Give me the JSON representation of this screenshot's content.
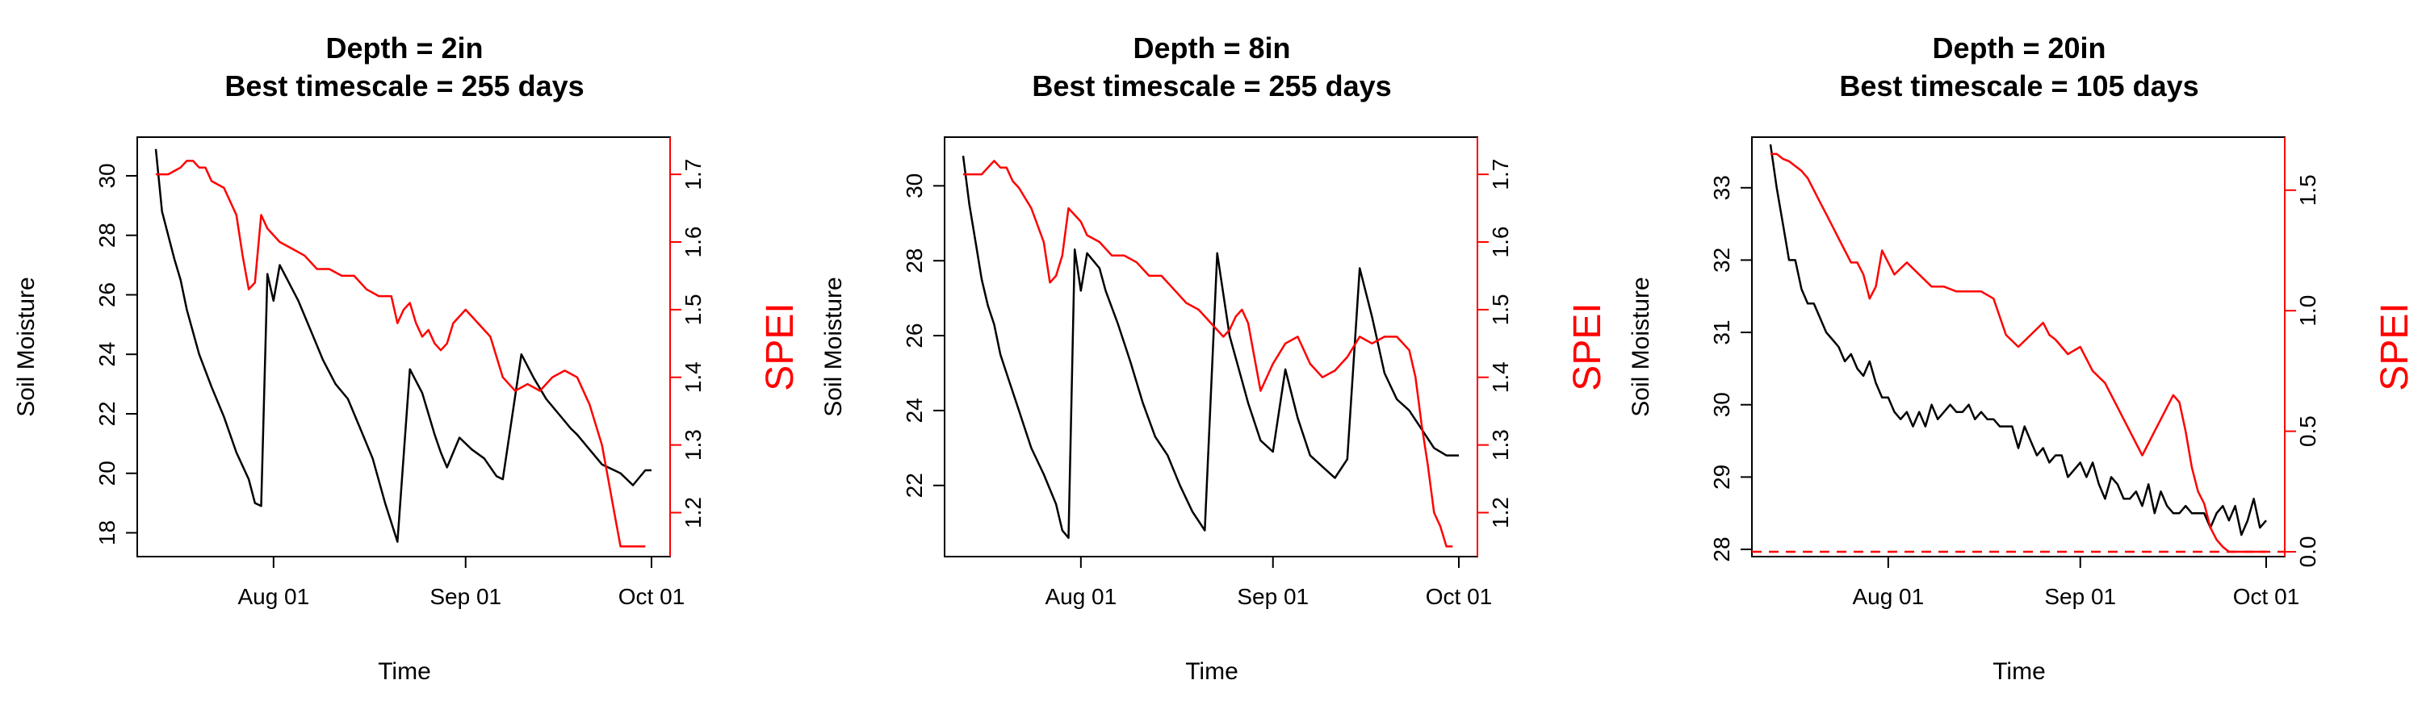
{
  "chart_data": [
    {
      "type": "line",
      "title_line1": "Depth = 2in",
      "title_line2": "Best timescale = 255 days",
      "xlabel": "Time",
      "ylabel": "Soil Moisture",
      "y2label": "SPEI",
      "x_ticks": [
        "Aug 01",
        "Sep 01",
        "Oct 01"
      ],
      "y_ticks": [
        18,
        20,
        22,
        24,
        26,
        28,
        30
      ],
      "y2_ticks": [
        1.2,
        1.3,
        1.4,
        1.5,
        1.6,
        1.7
      ],
      "xlim": [
        "2023-07-10",
        "2023-10-04"
      ],
      "ylim": [
        17.2,
        31.3
      ],
      "y2lim": [
        1.135,
        1.755
      ],
      "secondary_axis_color": "#ff0000",
      "series": [
        {
          "name": "Soil Moisture",
          "axis": "left",
          "color": "#000000",
          "x": [
            "2023-07-13",
            "2023-07-14",
            "2023-07-16",
            "2023-07-17",
            "2023-07-18",
            "2023-07-20",
            "2023-07-22",
            "2023-07-24",
            "2023-07-26",
            "2023-07-28",
            "2023-07-29",
            "2023-07-30",
            "2023-07-31",
            "2023-08-01",
            "2023-08-02",
            "2023-08-03",
            "2023-08-05",
            "2023-08-07",
            "2023-08-09",
            "2023-08-11",
            "2023-08-13",
            "2023-08-15",
            "2023-08-17",
            "2023-08-19",
            "2023-08-21",
            "2023-08-23",
            "2023-08-25",
            "2023-08-26",
            "2023-08-27",
            "2023-08-28",
            "2023-08-29",
            "2023-08-31",
            "2023-09-02",
            "2023-09-04",
            "2023-09-06",
            "2023-09-07",
            "2023-09-10",
            "2023-09-12",
            "2023-09-14",
            "2023-09-16",
            "2023-09-18",
            "2023-09-19",
            "2023-09-21",
            "2023-09-23",
            "2023-09-26",
            "2023-09-28",
            "2023-09-30",
            "2023-10-01"
          ],
          "values": [
            30.9,
            28.8,
            27.2,
            26.5,
            25.5,
            24.0,
            22.9,
            21.9,
            20.7,
            19.8,
            19.0,
            18.9,
            26.7,
            25.8,
            27.0,
            26.6,
            25.8,
            24.8,
            23.8,
            23.0,
            22.5,
            21.5,
            20.5,
            19.0,
            17.7,
            23.5,
            22.7,
            22.0,
            21.3,
            20.7,
            20.2,
            21.2,
            20.8,
            20.5,
            19.9,
            19.8,
            24.0,
            23.2,
            22.5,
            22.0,
            21.5,
            21.3,
            20.8,
            20.3,
            20.0,
            19.6,
            20.1,
            20.1
          ]
        },
        {
          "name": "SPEI",
          "axis": "right",
          "color": "#ff0000",
          "x": [
            "2023-07-13",
            "2023-07-14",
            "2023-07-15",
            "2023-07-16",
            "2023-07-17",
            "2023-07-18",
            "2023-07-19",
            "2023-07-20",
            "2023-07-21",
            "2023-07-22",
            "2023-07-24",
            "2023-07-26",
            "2023-07-27",
            "2023-07-28",
            "2023-07-29",
            "2023-07-30",
            "2023-07-31",
            "2023-08-01",
            "2023-08-02",
            "2023-08-04",
            "2023-08-06",
            "2023-08-08",
            "2023-08-10",
            "2023-08-12",
            "2023-08-14",
            "2023-08-16",
            "2023-08-18",
            "2023-08-20",
            "2023-08-21",
            "2023-08-22",
            "2023-08-23",
            "2023-08-24",
            "2023-08-25",
            "2023-08-26",
            "2023-08-27",
            "2023-08-28",
            "2023-08-29",
            "2023-08-30",
            "2023-09-01",
            "2023-09-03",
            "2023-09-05",
            "2023-09-07",
            "2023-09-09",
            "2023-09-11",
            "2023-09-13",
            "2023-09-15",
            "2023-09-17",
            "2023-09-19",
            "2023-09-21",
            "2023-09-23",
            "2023-09-24",
            "2023-09-25",
            "2023-09-26",
            "2023-09-27",
            "2023-09-28",
            "2023-09-29",
            "2023-09-30"
          ],
          "values": [
            1.7,
            1.7,
            1.7,
            1.705,
            1.71,
            1.72,
            1.72,
            1.71,
            1.71,
            1.69,
            1.68,
            1.64,
            1.58,
            1.53,
            1.54,
            1.64,
            1.62,
            1.61,
            1.6,
            1.59,
            1.58,
            1.56,
            1.56,
            1.55,
            1.55,
            1.53,
            1.52,
            1.52,
            1.48,
            1.5,
            1.51,
            1.48,
            1.46,
            1.47,
            1.45,
            1.44,
            1.45,
            1.48,
            1.5,
            1.48,
            1.46,
            1.4,
            1.38,
            1.39,
            1.38,
            1.4,
            1.41,
            1.4,
            1.36,
            1.3,
            1.25,
            1.2,
            1.15,
            1.15,
            1.15,
            1.15,
            1.15
          ]
        }
      ]
    },
    {
      "type": "line",
      "title_line1": "Depth = 8in",
      "title_line2": "Best timescale = 255 days",
      "xlabel": "Time",
      "ylabel": "Soil Moisture",
      "y2label": "SPEI",
      "x_ticks": [
        "Aug 01",
        "Sep 01",
        "Oct 01"
      ],
      "y_ticks": [
        22,
        24,
        26,
        28,
        30
      ],
      "y2_ticks": [
        1.2,
        1.3,
        1.4,
        1.5,
        1.6,
        1.7
      ],
      "xlim": [
        "2023-07-10",
        "2023-10-04"
      ],
      "ylim": [
        20.1,
        31.3
      ],
      "y2lim": [
        1.135,
        1.755
      ],
      "secondary_axis_color": "#ff0000",
      "series": [
        {
          "name": "Soil Moisture",
          "axis": "left",
          "color": "#000000",
          "x": [
            "2023-07-13",
            "2023-07-14",
            "2023-07-15",
            "2023-07-16",
            "2023-07-17",
            "2023-07-18",
            "2023-07-19",
            "2023-07-20",
            "2023-07-22",
            "2023-07-24",
            "2023-07-26",
            "2023-07-28",
            "2023-07-29",
            "2023-07-30",
            "2023-07-31",
            "2023-08-01",
            "2023-08-02",
            "2023-08-03",
            "2023-08-04",
            "2023-08-05",
            "2023-08-07",
            "2023-08-09",
            "2023-08-11",
            "2023-08-13",
            "2023-08-15",
            "2023-08-17",
            "2023-08-19",
            "2023-08-21",
            "2023-08-23",
            "2023-08-25",
            "2023-08-27",
            "2023-08-28",
            "2023-08-30",
            "2023-09-01",
            "2023-09-03",
            "2023-09-05",
            "2023-09-07",
            "2023-09-09",
            "2023-09-11",
            "2023-09-13",
            "2023-09-15",
            "2023-09-17",
            "2023-09-19",
            "2023-09-21",
            "2023-09-23",
            "2023-09-25",
            "2023-09-27",
            "2023-09-29",
            "2023-10-01"
          ],
          "values": [
            30.8,
            29.5,
            28.5,
            27.5,
            26.8,
            26.3,
            25.5,
            25.0,
            24.0,
            23.0,
            22.3,
            21.5,
            20.8,
            20.6,
            28.3,
            27.2,
            28.2,
            28.0,
            27.8,
            27.2,
            26.3,
            25.3,
            24.2,
            23.3,
            22.8,
            22.0,
            21.3,
            20.8,
            28.2,
            26.0,
            24.8,
            24.2,
            23.2,
            22.9,
            25.1,
            23.8,
            22.8,
            22.5,
            22.2,
            22.7,
            27.8,
            26.5,
            25.0,
            24.3,
            24.0,
            23.5,
            23.0,
            22.8,
            22.8
          ]
        },
        {
          "name": "SPEI",
          "axis": "right",
          "color": "#ff0000",
          "x": [
            "2023-07-13",
            "2023-07-14",
            "2023-07-15",
            "2023-07-16",
            "2023-07-17",
            "2023-07-18",
            "2023-07-19",
            "2023-07-20",
            "2023-07-21",
            "2023-07-22",
            "2023-07-24",
            "2023-07-26",
            "2023-07-27",
            "2023-07-28",
            "2023-07-29",
            "2023-07-30",
            "2023-07-31",
            "2023-08-01",
            "2023-08-02",
            "2023-08-04",
            "2023-08-06",
            "2023-08-08",
            "2023-08-10",
            "2023-08-12",
            "2023-08-14",
            "2023-08-16",
            "2023-08-18",
            "2023-08-20",
            "2023-08-22",
            "2023-08-24",
            "2023-08-25",
            "2023-08-26",
            "2023-08-27",
            "2023-08-28",
            "2023-08-29",
            "2023-08-30",
            "2023-09-01",
            "2023-09-03",
            "2023-09-05",
            "2023-09-07",
            "2023-09-09",
            "2023-09-11",
            "2023-09-13",
            "2023-09-15",
            "2023-09-17",
            "2023-09-19",
            "2023-09-21",
            "2023-09-23",
            "2023-09-24",
            "2023-09-25",
            "2023-09-26",
            "2023-09-27",
            "2023-09-28",
            "2023-09-29",
            "2023-09-30"
          ],
          "values": [
            1.7,
            1.7,
            1.7,
            1.7,
            1.71,
            1.72,
            1.71,
            1.71,
            1.69,
            1.68,
            1.65,
            1.6,
            1.54,
            1.55,
            1.58,
            1.65,
            1.64,
            1.63,
            1.61,
            1.6,
            1.58,
            1.58,
            1.57,
            1.55,
            1.55,
            1.53,
            1.51,
            1.5,
            1.48,
            1.46,
            1.47,
            1.49,
            1.5,
            1.48,
            1.43,
            1.38,
            1.42,
            1.45,
            1.46,
            1.42,
            1.4,
            1.41,
            1.43,
            1.46,
            1.45,
            1.46,
            1.46,
            1.44,
            1.4,
            1.33,
            1.27,
            1.2,
            1.18,
            1.15,
            1.15
          ]
        }
      ]
    },
    {
      "type": "line",
      "title_line1": "Depth = 20in",
      "title_line2": "Best timescale = 105 days",
      "xlabel": "Time",
      "ylabel": "Soil Moisture",
      "y2label": "SPEI",
      "x_ticks": [
        "Aug 01",
        "Sep 01",
        "Oct 01"
      ],
      "y_ticks": [
        28,
        29,
        30,
        31,
        32,
        33
      ],
      "y2_ticks": [
        0.0,
        0.5,
        1.0,
        1.5
      ],
      "xlim": [
        "2023-07-10",
        "2023-10-04"
      ],
      "ylim": [
        27.9,
        33.7
      ],
      "y2lim": [
        -0.02,
        1.72
      ],
      "secondary_axis_color": "#ff0000",
      "reference_line": {
        "axis": "right",
        "value": 0.0,
        "style": "dashed",
        "color": "#ff0000"
      },
      "series": [
        {
          "name": "Soil Moisture",
          "axis": "left",
          "color": "#000000",
          "x": [
            "2023-07-13",
            "2023-07-14",
            "2023-07-15",
            "2023-07-16",
            "2023-07-17",
            "2023-07-18",
            "2023-07-19",
            "2023-07-20",
            "2023-07-21",
            "2023-07-22",
            "2023-07-23",
            "2023-07-24",
            "2023-07-25",
            "2023-07-26",
            "2023-07-27",
            "2023-07-28",
            "2023-07-29",
            "2023-07-30",
            "2023-07-31",
            "2023-08-01",
            "2023-08-02",
            "2023-08-03",
            "2023-08-04",
            "2023-08-05",
            "2023-08-06",
            "2023-08-07",
            "2023-08-08",
            "2023-08-09",
            "2023-08-10",
            "2023-08-11",
            "2023-08-12",
            "2023-08-13",
            "2023-08-14",
            "2023-08-15",
            "2023-08-16",
            "2023-08-17",
            "2023-08-18",
            "2023-08-19",
            "2023-08-20",
            "2023-08-21",
            "2023-08-22",
            "2023-08-23",
            "2023-08-24",
            "2023-08-25",
            "2023-08-26",
            "2023-08-27",
            "2023-08-28",
            "2023-08-29",
            "2023-08-30",
            "2023-08-31",
            "2023-09-01",
            "2023-09-02",
            "2023-09-03",
            "2023-09-04",
            "2023-09-05",
            "2023-09-06",
            "2023-09-07",
            "2023-09-08",
            "2023-09-09",
            "2023-09-10",
            "2023-09-11",
            "2023-09-12",
            "2023-09-13",
            "2023-09-14",
            "2023-09-15",
            "2023-09-16",
            "2023-09-17",
            "2023-09-18",
            "2023-09-19",
            "2023-09-20",
            "2023-09-21",
            "2023-09-22",
            "2023-09-23",
            "2023-09-24",
            "2023-09-25",
            "2023-09-26",
            "2023-09-27",
            "2023-09-28",
            "2023-09-29",
            "2023-09-30",
            "2023-10-01"
          ],
          "values": [
            33.6,
            33.0,
            32.5,
            32.0,
            32.0,
            31.6,
            31.4,
            31.4,
            31.2,
            31.0,
            30.9,
            30.8,
            30.6,
            30.7,
            30.5,
            30.4,
            30.6,
            30.3,
            30.1,
            30.1,
            29.9,
            29.8,
            29.9,
            29.7,
            29.9,
            29.7,
            30.0,
            29.8,
            29.9,
            30.0,
            29.9,
            29.9,
            30.0,
            29.8,
            29.9,
            29.8,
            29.8,
            29.7,
            29.7,
            29.7,
            29.4,
            29.7,
            29.5,
            29.3,
            29.4,
            29.2,
            29.3,
            29.3,
            29.0,
            29.1,
            29.2,
            29.0,
            29.2,
            28.9,
            28.7,
            29.0,
            28.9,
            28.7,
            28.7,
            28.8,
            28.6,
            28.9,
            28.5,
            28.8,
            28.6,
            28.5,
            28.5,
            28.6,
            28.5,
            28.5,
            28.5,
            28.3,
            28.5,
            28.6,
            28.4,
            28.6,
            28.2,
            28.4,
            28.7,
            28.3,
            28.4
          ]
        },
        {
          "name": "SPEI",
          "axis": "right",
          "color": "#ff0000",
          "x": [
            "2023-07-13",
            "2023-07-14",
            "2023-07-15",
            "2023-07-16",
            "2023-07-17",
            "2023-07-18",
            "2023-07-19",
            "2023-07-20",
            "2023-07-21",
            "2023-07-22",
            "2023-07-23",
            "2023-07-24",
            "2023-07-25",
            "2023-07-26",
            "2023-07-27",
            "2023-07-28",
            "2023-07-29",
            "2023-07-30",
            "2023-07-31",
            "2023-08-01",
            "2023-08-02",
            "2023-08-04",
            "2023-08-06",
            "2023-08-08",
            "2023-08-10",
            "2023-08-12",
            "2023-08-14",
            "2023-08-16",
            "2023-08-18",
            "2023-08-20",
            "2023-08-22",
            "2023-08-24",
            "2023-08-26",
            "2023-08-27",
            "2023-08-28",
            "2023-08-30",
            "2023-09-01",
            "2023-09-03",
            "2023-09-05",
            "2023-09-07",
            "2023-09-09",
            "2023-09-11",
            "2023-09-12",
            "2023-09-13",
            "2023-09-14",
            "2023-09-15",
            "2023-09-16",
            "2023-09-17",
            "2023-09-18",
            "2023-09-19",
            "2023-09-20",
            "2023-09-21",
            "2023-09-22",
            "2023-09-23",
            "2023-09-24",
            "2023-09-25",
            "2023-09-26",
            "2023-09-27",
            "2023-09-28",
            "2023-09-29",
            "2023-09-30",
            "2023-10-01"
          ],
          "values": [
            1.65,
            1.65,
            1.63,
            1.62,
            1.6,
            1.58,
            1.55,
            1.5,
            1.45,
            1.4,
            1.35,
            1.3,
            1.25,
            1.2,
            1.2,
            1.15,
            1.05,
            1.1,
            1.25,
            1.2,
            1.15,
            1.2,
            1.15,
            1.1,
            1.1,
            1.08,
            1.08,
            1.08,
            1.05,
            0.9,
            0.85,
            0.9,
            0.95,
            0.9,
            0.88,
            0.82,
            0.85,
            0.75,
            0.7,
            0.6,
            0.5,
            0.4,
            0.45,
            0.5,
            0.55,
            0.6,
            0.65,
            0.62,
            0.5,
            0.35,
            0.25,
            0.2,
            0.1,
            0.05,
            0.02,
            0.0,
            0.0,
            0.0,
            0.0,
            0.0,
            0.0,
            0.0
          ]
        }
      ]
    }
  ]
}
